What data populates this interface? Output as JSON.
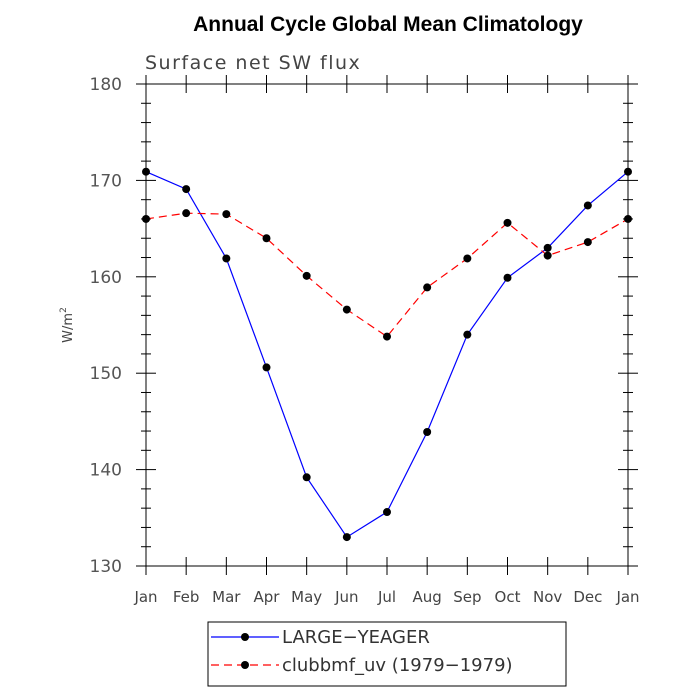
{
  "chart_data": {
    "type": "line",
    "title": "Annual Cycle Global Mean Climatology",
    "subtitle": "Surface net SW flux",
    "xlabel": "",
    "ylabel": "W/m",
    "ylabel_sup": "2",
    "ylim": [
      130,
      180
    ],
    "yticks": [
      130,
      140,
      150,
      160,
      170,
      180
    ],
    "categories": [
      "Jan",
      "Feb",
      "Mar",
      "Apr",
      "May",
      "Jun",
      "Jul",
      "Aug",
      "Sep",
      "Oct",
      "Nov",
      "Dec",
      "Jan"
    ],
    "series": [
      {
        "name": "LARGE−YEAGER",
        "color": "#0000ff",
        "dash": "solid",
        "values": [
          170.9,
          169.1,
          161.9,
          150.6,
          139.2,
          133.0,
          135.6,
          143.9,
          154.0,
          159.9,
          163.0,
          167.4,
          170.9
        ]
      },
      {
        "name": "clubbmf_uv (1979−1979)",
        "color": "#ff0000",
        "dash": "dashed",
        "values": [
          166.0,
          166.6,
          166.5,
          164.0,
          160.1,
          156.6,
          153.8,
          158.9,
          161.9,
          165.6,
          162.2,
          163.6,
          166.0
        ]
      }
    ],
    "legend_position": "bottom-left"
  }
}
